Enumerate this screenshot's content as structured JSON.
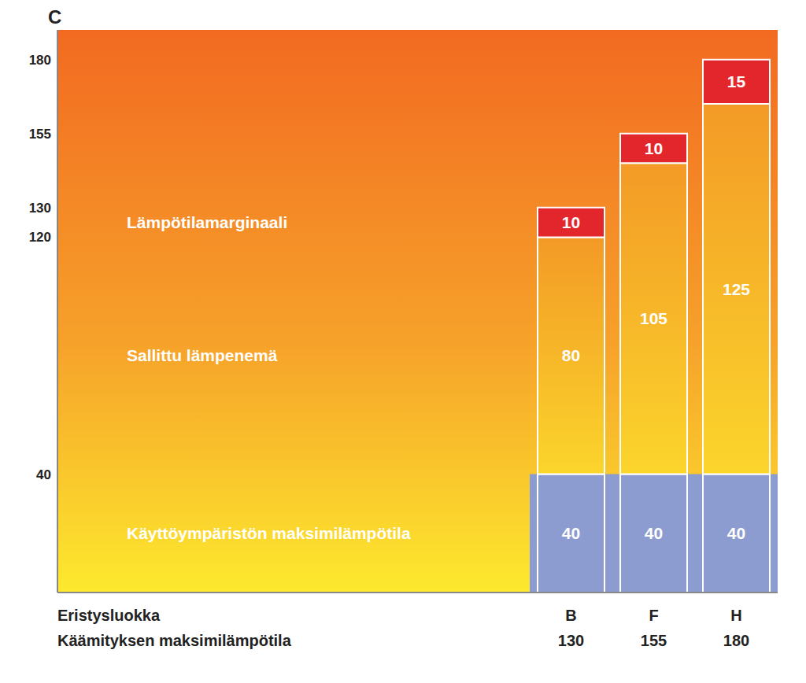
{
  "chart_data": {
    "type": "bar",
    "stacked": true,
    "data_labels": true,
    "grid": false,
    "ylabel": "C",
    "xlabel": "Eristysluokka",
    "categories": [
      "B",
      "F",
      "H"
    ],
    "series": [
      {
        "name": "Käyttöympäristön maksimilämpötila",
        "color": "#8c9bd0",
        "values": [
          40,
          40,
          40
        ]
      },
      {
        "name": "Sallittu lämpenemä",
        "color": "#f39a26",
        "values": [
          80,
          105,
          125
        ]
      },
      {
        "name": "Lämpötilamarginaali",
        "color": "#e3262b",
        "values": [
          10,
          10,
          15
        ]
      }
    ],
    "max_temperature_label": "Käämityksen maksimilämpötila",
    "max_temperatures": [
      130,
      155,
      180
    ],
    "ylim": [
      0,
      190
    ],
    "yticks": [
      40,
      120,
      130,
      155,
      180
    ]
  }
}
